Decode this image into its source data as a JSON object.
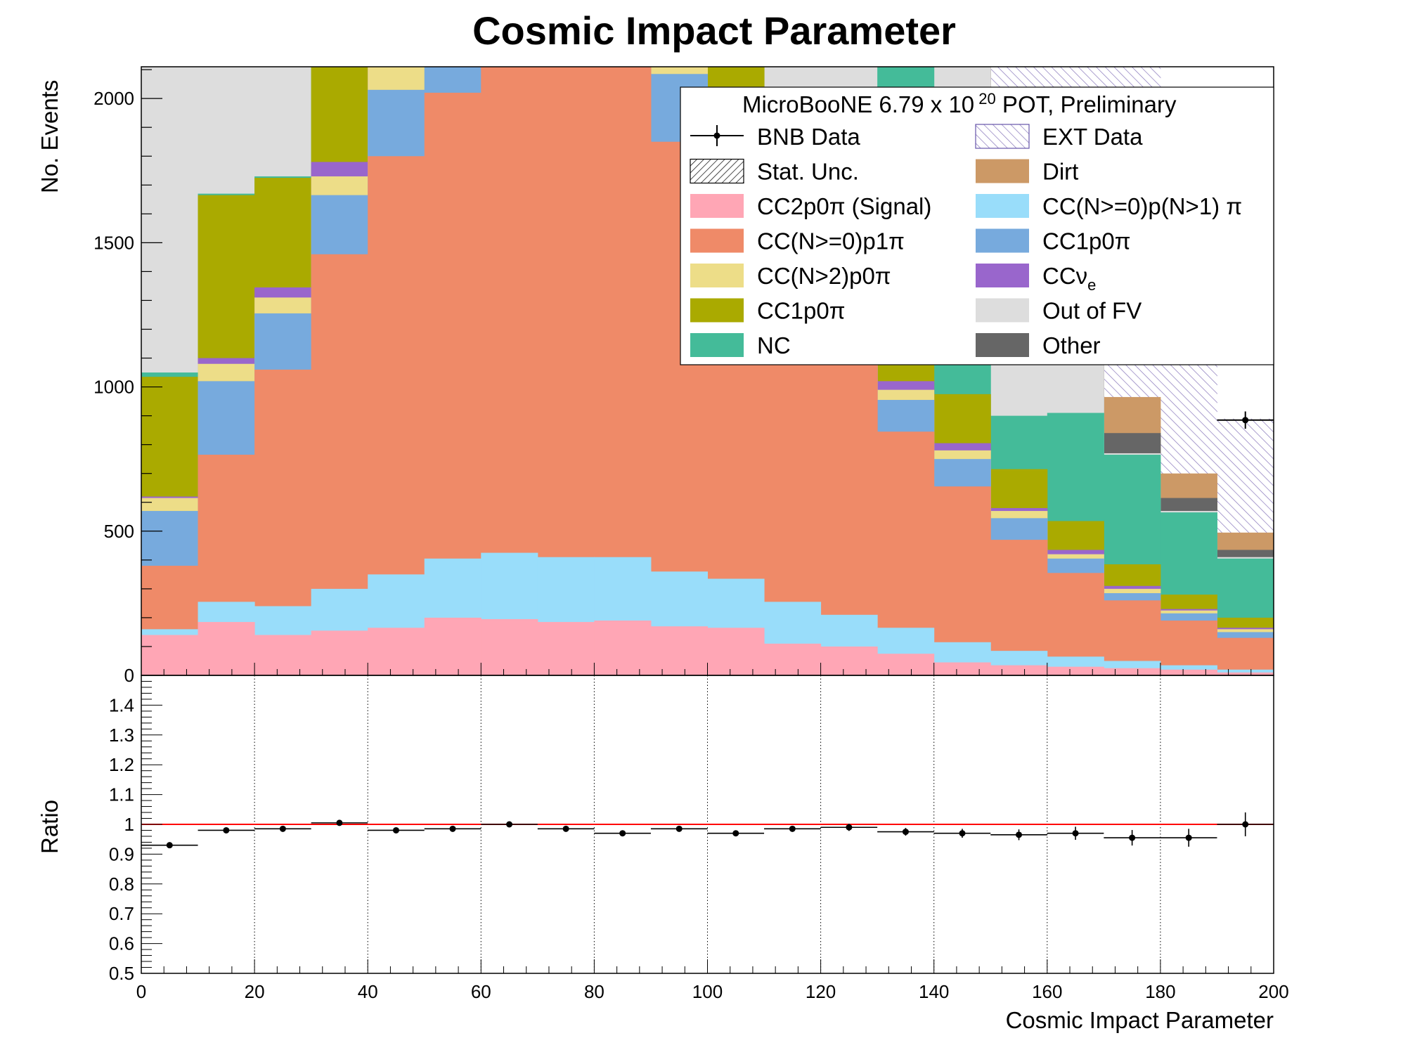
{
  "title": "Cosmic Impact Parameter",
  "legend": {
    "header_pre": "MicroBooNE 6.79 x 10",
    "header_exp": "20",
    "header_post": " POT, Preliminary",
    "entries_left": [
      {
        "id": "bnb",
        "label": "BNB Data"
      },
      {
        "id": "stat",
        "label": "Stat. Unc."
      },
      {
        "id": "s0",
        "label": "CC2p0π (Signal)"
      },
      {
        "id": "s2",
        "label": "CC(N>=0)p1π"
      },
      {
        "id": "s4",
        "label": "CC(N>2)p0π"
      },
      {
        "id": "s6",
        "label": "CC1p0π"
      },
      {
        "id": "s7",
        "label": "NC"
      }
    ],
    "entries_right": [
      {
        "id": "ext",
        "label": "EXT Data"
      },
      {
        "id": "s10",
        "label": "Dirt"
      },
      {
        "id": "s1",
        "label": "CC(N>=0)p(N>1) π"
      },
      {
        "id": "s3",
        "label": "CC1p0π"
      },
      {
        "id": "s5",
        "label": "CCν",
        "sub": "e"
      },
      {
        "id": "s8",
        "label": "Out of FV"
      },
      {
        "id": "s9",
        "label": "Other"
      }
    ]
  },
  "chart_data": [
    {
      "type": "bar",
      "stacked": true,
      "ylabel": "No. Events",
      "xlim": [
        0,
        200
      ],
      "ylim": [
        0,
        2110
      ],
      "yticks": [
        0,
        500,
        1000,
        1500,
        2000
      ],
      "x_bin_edges": [
        0,
        10,
        20,
        30,
        40,
        50,
        60,
        70,
        80,
        90,
        100,
        110,
        120,
        130,
        140,
        150,
        160,
        170,
        180,
        190,
        200
      ],
      "series": [
        {
          "key": "s0",
          "name": "CC2p0π (Signal)",
          "color": "#ffa6b5",
          "cumulative": [
            140,
            185,
            140,
            155,
            165,
            200,
            195,
            185,
            190,
            170,
            165,
            110,
            100,
            75,
            45,
            35,
            30,
            25,
            20,
            10
          ]
        },
        {
          "key": "s1",
          "name": "CC(N>=0)p(N>1) π",
          "color": "#99ddfa",
          "cumulative": [
            160,
            255,
            240,
            300,
            350,
            405,
            425,
            410,
            410,
            360,
            335,
            255,
            210,
            165,
            115,
            85,
            65,
            50,
            35,
            20
          ]
        },
        {
          "key": "s2",
          "name": "CC(N>=0)p1π",
          "color": "#ef8a68",
          "cumulative": [
            380,
            765,
            1060,
            1460,
            1800,
            2020,
            2300,
            2300,
            2300,
            1850,
            1600,
            1400,
            1200,
            845,
            655,
            470,
            355,
            260,
            190,
            130
          ]
        },
        {
          "key": "s3",
          "name": "CC1p0π",
          "color": "#77aadd",
          "cumulative": [
            570,
            1020,
            1255,
            1665,
            2030,
            2110,
            2300,
            2300,
            2110,
            2085,
            1750,
            1550,
            1350,
            955,
            750,
            545,
            405,
            285,
            215,
            150
          ]
        },
        {
          "key": "s4",
          "name": "CC(N>2)p0π",
          "color": "#eddd88",
          "cumulative": [
            615,
            1080,
            1310,
            1730,
            2110,
            2300,
            2300,
            2300,
            2300,
            2300,
            1800,
            1600,
            1400,
            990,
            780,
            570,
            420,
            300,
            225,
            160
          ]
        },
        {
          "key": "s5",
          "name": "CCνe",
          "color": "#9966cc",
          "cumulative": [
            620,
            1100,
            1345,
            1780,
            2150,
            2300,
            2300,
            2300,
            2300,
            2300,
            1810,
            1610,
            1410,
            1020,
            805,
            580,
            435,
            310,
            230,
            165
          ]
        },
        {
          "key": "s6",
          "name": "CC1p0π",
          "color": "#aaaa00",
          "cumulative": [
            1035,
            1665,
            1725,
            2200,
            2300,
            2300,
            2300,
            2300,
            2300,
            2300,
            2200,
            2000,
            1800,
            1100,
            975,
            715,
            535,
            385,
            280,
            200
          ]
        },
        {
          "key": "s7",
          "name": "NC",
          "color": "#44bb99",
          "cumulative": [
            1050,
            1670,
            1730,
            2210,
            2300,
            2300,
            2300,
            2300,
            2300,
            2300,
            2210,
            2010,
            1810,
            2110,
            1700,
            900,
            910,
            765,
            565,
            405
          ]
        },
        {
          "key": "s8",
          "name": "Out of FV",
          "color": "#dddddd",
          "cumulative": [
            2300,
            2300,
            2300,
            2300,
            2300,
            2300,
            2300,
            2300,
            2300,
            2300,
            2300,
            2300,
            2300,
            2300,
            2300,
            1300,
            1100,
            770,
            570,
            410
          ]
        },
        {
          "key": "s9",
          "name": "Other",
          "color": "#666666",
          "cumulative": [
            2300,
            2300,
            2300,
            2300,
            2300,
            2300,
            2300,
            2300,
            2300,
            2300,
            2300,
            2300,
            2300,
            2300,
            2300,
            1310,
            1110,
            840,
            615,
            435
          ]
        },
        {
          "key": "s10",
          "name": "Dirt",
          "color": "#cc9966",
          "cumulative": [
            2300,
            2300,
            2300,
            2300,
            2300,
            2300,
            2300,
            2300,
            2300,
            2300,
            2300,
            2300,
            2300,
            2300,
            2300,
            1320,
            1120,
            965,
            700,
            495
          ]
        },
        {
          "key": "ext",
          "name": "EXT Data",
          "color": "#9988cc",
          "hatch": true,
          "cumulative": [
            2300,
            2300,
            2300,
            2300,
            2300,
            2300,
            2300,
            2300,
            2300,
            2300,
            2300,
            2300,
            2300,
            2300,
            2300,
            2300,
            2300,
            2110,
            1080,
            890
          ]
        }
      ],
      "bnb_data": {
        "x": [
          195
        ],
        "y": [
          885
        ],
        "yerr": [
          30
        ]
      }
    },
    {
      "type": "scatter",
      "ylabel": "Ratio",
      "xlabel": "Cosmic Impact Parameter",
      "xlim": [
        0,
        200
      ],
      "ylim": [
        0.5,
        1.5
      ],
      "xticks": [
        0,
        20,
        40,
        60,
        80,
        100,
        120,
        140,
        160,
        180,
        200
      ],
      "yticks": [
        0.5,
        0.6,
        0.7,
        0.8,
        0.9,
        1,
        1.1,
        1.2,
        1.3,
        1.4
      ],
      "yticklabels": [
        "0.5",
        "0.6",
        "0.7",
        "0.8",
        "0.9",
        "1",
        "1.1",
        "1.2",
        "1.3",
        "1.4"
      ],
      "grid_x": true,
      "reference_line": {
        "y": 1,
        "color": "#ff0000"
      },
      "x": [
        5,
        15,
        25,
        35,
        45,
        55,
        65,
        75,
        85,
        95,
        105,
        115,
        125,
        135,
        145,
        155,
        165,
        175,
        185,
        195
      ],
      "y": [
        0.93,
        0.98,
        0.985,
        1.005,
        0.98,
        0.985,
        1.0,
        0.985,
        0.97,
        0.985,
        0.97,
        0.985,
        0.99,
        0.975,
        0.97,
        0.965,
        0.97,
        0.955,
        0.955,
        1.0
      ],
      "yerr": [
        0.008,
        0.008,
        0.008,
        0.007,
        0.007,
        0.007,
        0.007,
        0.007,
        0.008,
        0.008,
        0.009,
        0.009,
        0.012,
        0.013,
        0.015,
        0.018,
        0.022,
        0.026,
        0.03,
        0.04
      ],
      "xerr": 5
    }
  ]
}
